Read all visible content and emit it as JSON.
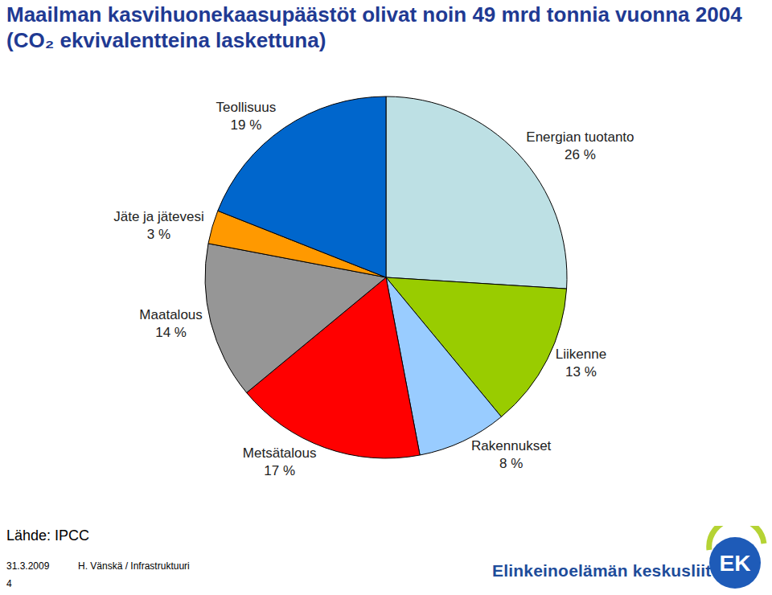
{
  "chart_data": {
    "type": "pie",
    "title": "Maailman kasvihuonekaasupäästöt olivat noin 49 mrd tonnia vuonna 2004 (CO₂ ekvivalentteina laskettuna)",
    "categories": [
      "Energian tuotanto",
      "Liikenne",
      "Rakennukset",
      "Metsätalous",
      "Maatalous",
      "Jäte ja jätevesi",
      "Teollisuus"
    ],
    "values": [
      26,
      13,
      8,
      17,
      14,
      3,
      19
    ],
    "value_labels": [
      "26 %",
      "13 %",
      "8 %",
      "17 %",
      "14 %",
      "3 %",
      "19 %"
    ],
    "colors": [
      "#bde0e4",
      "#99cc00",
      "#99ccff",
      "#ff0000",
      "#969696",
      "#ff9900",
      "#0066cc"
    ],
    "data_labels": true
  },
  "page": {
    "source": "Lähde: IPCC",
    "date": "31.3.2009",
    "author": "H. Vänskä / Infrastruktuuri",
    "page_number": "4",
    "logo_text": "Elinkeinoelämän keskusliitto",
    "logo_mark": "EK"
  }
}
